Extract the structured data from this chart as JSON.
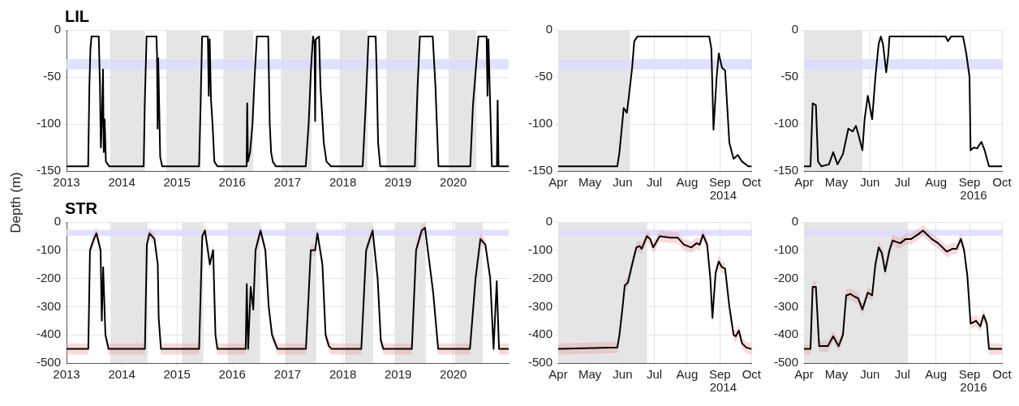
{
  "chart_data": [
    {
      "type": "line",
      "title": "LIL",
      "ylabel": "Depth (m)",
      "xlim": [
        "2013-01-01",
        "2021-01-01"
      ],
      "xticks": [
        {
          "value": "2013-01-01",
          "label": "2013"
        },
        {
          "value": "2014-01-01",
          "label": "2014"
        },
        {
          "value": "2015-01-01",
          "label": "2015"
        },
        {
          "value": "2016-01-01",
          "label": "2016"
        },
        {
          "value": "2017-01-01",
          "label": "2017"
        },
        {
          "value": "2018-01-01",
          "label": "2018"
        },
        {
          "value": "2019-01-01",
          "label": "2019"
        },
        {
          "value": "2020-01-01",
          "label": "2020"
        }
      ],
      "ylim": [
        -150,
        0
      ],
      "yticks": [
        -150,
        -100,
        -50,
        0
      ],
      "grid": true,
      "legend": false,
      "marker": "none",
      "line_style": "solid",
      "bands": [
        {
          "axis": "x",
          "from": "2013-10-16",
          "to": "2014-06-04",
          "color": "#e5e5e5"
        },
        {
          "axis": "x",
          "from": "2014-10-23",
          "to": "2015-06-07",
          "color": "#e5e5e5"
        },
        {
          "axis": "x",
          "from": "2015-11-03",
          "to": "2016-05-19",
          "color": "#e5e5e5"
        },
        {
          "axis": "x",
          "from": "2016-11-18",
          "to": "2017-06-07",
          "color": "#e5e5e5"
        },
        {
          "axis": "x",
          "from": "2017-12-10",
          "to": "2018-06-13",
          "color": "#e5e5e5"
        },
        {
          "axis": "x",
          "from": "2018-10-16",
          "to": "2019-05-19",
          "color": "#e5e5e5"
        },
        {
          "axis": "x",
          "from": "2019-12-01",
          "to": "2020-06-02",
          "color": "#e5e5e5"
        },
        {
          "axis": "y",
          "from": -42,
          "to": -31,
          "color": "#dcdcff"
        }
      ],
      "x": [
        "2013-01-01",
        "2013-05-24",
        "2013-06-01",
        "2013-06-08",
        "2013-06-15",
        "2013-08-02",
        "2013-08-10",
        "2013-08-16",
        "2013-08-22",
        "2013-08-30",
        "2013-09-04",
        "2013-09-10",
        "2013-09-18",
        "2013-10-10",
        "2014-05-26",
        "2014-06-02",
        "2014-06-14",
        "2014-08-18",
        "2014-08-22",
        "2014-08-26",
        "2014-08-30",
        "2014-09-12",
        "2014-09-25",
        "2015-05-27",
        "2015-06-06",
        "2015-06-16",
        "2015-07-24",
        "2015-07-30",
        "2015-08-05",
        "2015-08-14",
        "2015-08-24",
        "2015-09-05",
        "2015-09-25",
        "2016-04-05",
        "2016-04-09",
        "2016-04-14",
        "2016-04-28",
        "2016-05-14",
        "2016-05-28",
        "2016-06-12",
        "2016-08-26",
        "2016-09-05",
        "2016-09-14",
        "2016-09-25",
        "2016-10-15",
        "2017-05-01",
        "2017-05-20",
        "2017-06-05",
        "2017-06-18",
        "2017-06-28",
        "2017-07-02",
        "2017-07-06",
        "2017-07-28",
        "2017-08-06",
        "2017-08-28",
        "2017-09-15",
        "2017-10-15",
        "2018-05-12",
        "2018-06-01",
        "2018-06-20",
        "2018-08-06",
        "2018-08-12",
        "2018-08-22",
        "2018-09-05",
        "2019-04-22",
        "2019-05-10",
        "2019-05-25",
        "2019-08-18",
        "2019-09-05",
        "2019-09-25",
        "2020-04-22",
        "2020-05-10",
        "2020-06-15",
        "2020-08-08",
        "2020-08-14",
        "2020-08-20",
        "2020-09-12",
        "2020-10-15",
        "2020-10-20",
        "2020-10-26",
        "2021-01-01"
      ],
      "series": [
        {
          "color": "#000000",
          "values": [
            -145,
            -145,
            -60,
            -20,
            -7,
            -7,
            -60,
            -125,
            -100,
            -42,
            -130,
            -95,
            -140,
            -145,
            -145,
            -80,
            -7,
            -7,
            -25,
            -105,
            -30,
            -135,
            -145,
            -145,
            -80,
            -7,
            -7,
            -70,
            -10,
            -75,
            -100,
            -140,
            -145,
            -145,
            -78,
            -140,
            -130,
            -100,
            -50,
            -7,
            -7,
            -100,
            -130,
            -140,
            -145,
            -145,
            -100,
            -40,
            -7,
            -15,
            -97,
            -10,
            -7,
            -60,
            -120,
            -140,
            -145,
            -145,
            -80,
            -7,
            -7,
            -40,
            -120,
            -145,
            -145,
            -60,
            -7,
            -7,
            -60,
            -145,
            -145,
            -80,
            -7,
            -7,
            -70,
            -10,
            -145,
            -145,
            -75,
            -145,
            -145
          ]
        }
      ]
    },
    {
      "type": "line",
      "annotations": [
        "2014"
      ],
      "xlim": [
        "2014-04-01",
        "2014-10-01"
      ],
      "xticks": [
        {
          "value": "2014-04-01",
          "label": "Apr"
        },
        {
          "value": "2014-05-01",
          "label": "May"
        },
        {
          "value": "2014-06-01",
          "label": "Jun"
        },
        {
          "value": "2014-07-01",
          "label": "Jul"
        },
        {
          "value": "2014-08-01",
          "label": "Aug"
        },
        {
          "value": "2014-09-01",
          "label": "Sep"
        },
        {
          "value": "2014-10-01",
          "label": "Oct"
        }
      ],
      "ylim": [
        -150,
        0
      ],
      "yticks": [
        -150,
        -100,
        -50,
        0
      ],
      "grid": true,
      "legend": false,
      "marker": "none",
      "line_style": "solid",
      "bands": [
        {
          "axis": "x",
          "from": "2014-04-01",
          "to": "2014-06-08",
          "color": "#e5e5e5"
        },
        {
          "axis": "y",
          "from": -42,
          "to": -31,
          "color": "#dcdcff"
        }
      ],
      "x": [
        "2014-04-01",
        "2014-05-27",
        "2014-05-29",
        "2014-06-02",
        "2014-06-05",
        "2014-06-07",
        "2014-06-10",
        "2014-06-12",
        "2014-06-15",
        "2014-08-22",
        "2014-08-24",
        "2014-08-26",
        "2014-08-29",
        "2014-08-31",
        "2014-09-03",
        "2014-09-06",
        "2014-09-10",
        "2014-09-14",
        "2014-09-18",
        "2014-09-22",
        "2014-09-28",
        "2014-10-01"
      ],
      "series": [
        {
          "color": "#000000",
          "values": [
            -145,
            -145,
            -130,
            -83,
            -88,
            -70,
            -40,
            -12,
            -7,
            -7,
            -20,
            -106,
            -50,
            -25,
            -40,
            -43,
            -120,
            -137,
            -133,
            -140,
            -145,
            -145
          ]
        }
      ]
    },
    {
      "type": "line",
      "annotations": [
        "2016"
      ],
      "xlim": [
        "2016-04-01",
        "2016-10-01"
      ],
      "xticks": [
        {
          "value": "2016-04-01",
          "label": "Apr"
        },
        {
          "value": "2016-05-01",
          "label": "May"
        },
        {
          "value": "2016-06-01",
          "label": "Jun"
        },
        {
          "value": "2016-07-01",
          "label": "Jul"
        },
        {
          "value": "2016-08-01",
          "label": "Aug"
        },
        {
          "value": "2016-09-01",
          "label": "Sep"
        },
        {
          "value": "2016-10-01",
          "label": "Oct"
        }
      ],
      "ylim": [
        -150,
        0
      ],
      "yticks": [
        -150,
        -100,
        -50,
        0
      ],
      "grid": true,
      "legend": false,
      "marker": "none",
      "line_style": "solid",
      "bands": [
        {
          "axis": "x",
          "from": "2016-04-01",
          "to": "2016-05-25",
          "color": "#e5e5e5"
        },
        {
          "axis": "y",
          "from": -42,
          "to": -31,
          "color": "#dcdcff"
        }
      ],
      "x": [
        "2016-04-01",
        "2016-04-07",
        "2016-04-09",
        "2016-04-12",
        "2016-04-14",
        "2016-04-17",
        "2016-04-24",
        "2016-04-28",
        "2016-05-02",
        "2016-05-07",
        "2016-05-12",
        "2016-05-16",
        "2016-05-19",
        "2016-05-21",
        "2016-05-25",
        "2016-05-27",
        "2016-05-30",
        "2016-06-03",
        "2016-06-06",
        "2016-06-09",
        "2016-06-11",
        "2016-06-13",
        "2016-06-16",
        "2016-06-18",
        "2016-06-19",
        "2016-08-10",
        "2016-08-12",
        "2016-08-15",
        "2016-08-26",
        "2016-08-29",
        "2016-09-01",
        "2016-09-02",
        "2016-09-05",
        "2016-09-08",
        "2016-09-12",
        "2016-09-15",
        "2016-09-19",
        "2016-10-01"
      ],
      "series": [
        {
          "color": "#000000",
          "values": [
            -145,
            -145,
            -78,
            -80,
            -140,
            -145,
            -143,
            -130,
            -143,
            -132,
            -105,
            -108,
            -102,
            -110,
            -128,
            -95,
            -70,
            -95,
            -50,
            -15,
            -7,
            -15,
            -45,
            -25,
            -7,
            -7,
            -12,
            -7,
            -7,
            -25,
            -50,
            -128,
            -125,
            -126,
            -119,
            -128,
            -145,
            -145
          ]
        }
      ]
    },
    {
      "type": "line",
      "title": "STR",
      "xlim": [
        "2013-01-01",
        "2021-01-01"
      ],
      "xticks": [
        {
          "value": "2013-01-01",
          "label": "2013"
        },
        {
          "value": "2014-01-01",
          "label": "2014"
        },
        {
          "value": "2015-01-01",
          "label": "2015"
        },
        {
          "value": "2016-01-01",
          "label": "2016"
        },
        {
          "value": "2017-01-01",
          "label": "2017"
        },
        {
          "value": "2018-01-01",
          "label": "2018"
        },
        {
          "value": "2019-01-01",
          "label": "2019"
        },
        {
          "value": "2020-01-01",
          "label": "2020"
        }
      ],
      "ylim": [
        -500,
        0
      ],
      "yticks": [
        -500,
        -400,
        -300,
        -200,
        -100,
        0
      ],
      "grid": true,
      "legend": false,
      "marker": "none",
      "line_style": "solid",
      "bands": [
        {
          "axis": "x",
          "from": "2013-10-19",
          "to": "2014-06-22",
          "color": "#e5e5e5"
        },
        {
          "axis": "x",
          "from": "2015-02-03",
          "to": "2015-06-24",
          "color": "#e5e5e5"
        },
        {
          "axis": "x",
          "from": "2015-12-02",
          "to": "2016-07-04",
          "color": "#e5e5e5"
        },
        {
          "axis": "x",
          "from": "2016-12-16",
          "to": "2017-07-10",
          "color": "#e5e5e5"
        },
        {
          "axis": "x",
          "from": "2018-01-15",
          "to": "2018-07-20",
          "color": "#e5e5e5"
        },
        {
          "axis": "x",
          "from": "2018-12-10",
          "to": "2019-07-02",
          "color": "#e5e5e5"
        },
        {
          "axis": "x",
          "from": "2020-01-13",
          "to": "2020-07-12",
          "color": "#e5e5e5"
        },
        {
          "axis": "y",
          "from": -49,
          "to": -27,
          "color": "#dcdcff"
        }
      ],
      "x": [
        "2013-01-01",
        "2013-05-25",
        "2013-06-05",
        "2013-07-01",
        "2013-07-18",
        "2013-08-14",
        "2013-08-22",
        "2013-08-31",
        "2013-09-15",
        "2013-10-06",
        "2014-06-03",
        "2014-06-16",
        "2014-07-03",
        "2014-08-05",
        "2014-08-27",
        "2014-09-02",
        "2014-09-17",
        "2015-05-27",
        "2015-06-17",
        "2015-07-05",
        "2015-08-06",
        "2015-08-28",
        "2015-09-12",
        "2015-09-25",
        "2016-03-30",
        "2016-04-06",
        "2016-04-15",
        "2016-05-02",
        "2016-05-19",
        "2016-06-03",
        "2016-07-06",
        "2016-08-07",
        "2016-08-29",
        "2016-09-20",
        "2016-10-11",
        "2016-10-26",
        "2017-05-02",
        "2017-05-19",
        "2017-06-03",
        "2017-07-02",
        "2017-07-17",
        "2017-08-19",
        "2017-09-09",
        "2017-10-01",
        "2017-10-20",
        "2018-05-03",
        "2018-06-04",
        "2018-07-17",
        "2018-08-19",
        "2018-09-09",
        "2018-09-26",
        "2019-04-02",
        "2019-04-30",
        "2019-06-06",
        "2019-06-28",
        "2019-08-21",
        "2019-09-23",
        "2020-04-20",
        "2020-05-27",
        "2020-06-28",
        "2020-07-31",
        "2020-09-01",
        "2020-09-23",
        "2020-10-14",
        "2020-10-29",
        "2021-01-01"
      ],
      "series": [
        {
          "color": "#000000",
          "values": [
            -450,
            -450,
            -100,
            -60,
            -40,
            -100,
            -350,
            -160,
            -400,
            -450,
            -450,
            -80,
            -40,
            -60,
            -150,
            -340,
            -450,
            -450,
            -50,
            -30,
            -150,
            -100,
            -400,
            -450,
            -450,
            -220,
            -450,
            -230,
            -310,
            -100,
            -30,
            -100,
            -300,
            -400,
            -430,
            -450,
            -450,
            -270,
            -100,
            -100,
            -40,
            -150,
            -400,
            -440,
            -450,
            -450,
            -100,
            -30,
            -200,
            -420,
            -450,
            -450,
            -100,
            -30,
            -20,
            -250,
            -450,
            -450,
            -200,
            -60,
            -80,
            -200,
            -450,
            -210,
            -450,
            -450
          ],
          "lower": [
            -470,
            -470,
            -120,
            -80,
            -60,
            -120,
            -370,
            -180,
            -420,
            -470,
            -470,
            -100,
            -60,
            -80,
            -170,
            -360,
            -470,
            -470,
            -70,
            -50,
            -170,
            -120,
            -420,
            -470,
            -470,
            -240,
            -470,
            -250,
            -330,
            -120,
            -50,
            -120,
            -320,
            -420,
            -450,
            -470,
            -470,
            -290,
            -120,
            -120,
            -60,
            -170,
            -420,
            -460,
            -470,
            -470,
            -120,
            -50,
            -220,
            -440,
            -470,
            -470,
            -120,
            -50,
            -40,
            -270,
            -470,
            -470,
            -220,
            -80,
            -100,
            -220,
            -470,
            -230,
            -470,
            -470
          ],
          "upper": [
            -430,
            -430,
            -80,
            -40,
            -20,
            -80,
            -330,
            -140,
            -380,
            -430,
            -430,
            -60,
            -20,
            -40,
            -130,
            -320,
            -430,
            -430,
            -30,
            -10,
            -130,
            -80,
            -380,
            -430,
            -430,
            -200,
            -430,
            -210,
            -290,
            -80,
            -10,
            -80,
            -280,
            -380,
            -410,
            -430,
            -430,
            -250,
            -80,
            -80,
            -20,
            -130,
            -380,
            -420,
            -430,
            -430,
            -80,
            -10,
            -180,
            -400,
            -430,
            -430,
            -80,
            -10,
            0,
            -230,
            -430,
            -430,
            -180,
            -40,
            -60,
            -180,
            -430,
            -190,
            -430,
            -430
          ]
        }
      ]
    },
    {
      "type": "line",
      "annotations": [
        "2014"
      ],
      "xlim": [
        "2014-04-01",
        "2014-10-01"
      ],
      "xticks": [
        {
          "value": "2014-04-01",
          "label": "Apr"
        },
        {
          "value": "2014-05-01",
          "label": "May"
        },
        {
          "value": "2014-06-01",
          "label": "Jun"
        },
        {
          "value": "2014-07-01",
          "label": "Jul"
        },
        {
          "value": "2014-08-01",
          "label": "Aug"
        },
        {
          "value": "2014-09-01",
          "label": "Sep"
        },
        {
          "value": "2014-10-01",
          "label": "Oct"
        }
      ],
      "ylim": [
        -500,
        0
      ],
      "yticks": [
        -500,
        -400,
        -300,
        -200,
        -100,
        0
      ],
      "grid": true,
      "legend": false,
      "marker": "none",
      "line_style": "solid",
      "bands": [
        {
          "axis": "x",
          "from": "2014-04-01",
          "to": "2014-06-24",
          "color": "#e5e5e5"
        },
        {
          "axis": "y",
          "from": -49,
          "to": -27,
          "color": "#dcdcff"
        }
      ],
      "x": [
        "2014-04-01",
        "2014-05-27",
        "2014-05-29",
        "2014-06-01",
        "2014-06-03",
        "2014-06-06",
        "2014-06-10",
        "2014-06-14",
        "2014-06-17",
        "2014-06-19",
        "2014-06-24",
        "2014-06-27",
        "2014-06-30",
        "2014-07-06",
        "2014-07-16",
        "2014-07-23",
        "2014-07-29",
        "2014-08-05",
        "2014-08-10",
        "2014-08-13",
        "2014-08-16",
        "2014-08-20",
        "2014-08-23",
        "2014-08-25",
        "2014-08-28",
        "2014-08-31",
        "2014-09-03",
        "2014-09-06",
        "2014-09-10",
        "2014-09-14",
        "2014-09-16",
        "2014-09-19",
        "2014-09-22",
        "2014-09-26",
        "2014-10-01"
      ],
      "series": [
        {
          "color": "#000000",
          "values": [
            -450,
            -445,
            -400,
            -300,
            -225,
            -215,
            -150,
            -90,
            -85,
            -95,
            -50,
            -60,
            -90,
            -50,
            -55,
            -55,
            -80,
            -90,
            -75,
            -80,
            -45,
            -80,
            -200,
            -340,
            -180,
            -140,
            -160,
            -165,
            -300,
            -400,
            -405,
            -385,
            -430,
            -445,
            -450
          ],
          "lower": [
            -470,
            -465,
            -420,
            -320,
            -245,
            -235,
            -170,
            -110,
            -105,
            -115,
            -70,
            -80,
            -110,
            -70,
            -75,
            -75,
            -100,
            -110,
            -95,
            -100,
            -65,
            -100,
            -220,
            -360,
            -200,
            -160,
            -180,
            -185,
            -320,
            -420,
            -425,
            -405,
            -450,
            -465,
            -470
          ],
          "upper": [
            -430,
            -425,
            -380,
            -280,
            -205,
            -195,
            -130,
            -70,
            -65,
            -75,
            -30,
            -40,
            -70,
            -30,
            -35,
            -35,
            -60,
            -70,
            -55,
            -60,
            -25,
            -60,
            -180,
            -320,
            -160,
            -120,
            -140,
            -145,
            -280,
            -380,
            -385,
            -365,
            -410,
            -425,
            -430
          ]
        }
      ]
    },
    {
      "type": "line",
      "annotations": [
        "2016"
      ],
      "xlim": [
        "2016-04-01",
        "2016-10-01"
      ],
      "xticks": [
        {
          "value": "2016-04-01",
          "label": "Apr"
        },
        {
          "value": "2016-05-01",
          "label": "May"
        },
        {
          "value": "2016-06-01",
          "label": "Jun"
        },
        {
          "value": "2016-07-01",
          "label": "Jul"
        },
        {
          "value": "2016-08-01",
          "label": "Aug"
        },
        {
          "value": "2016-09-01",
          "label": "Sep"
        },
        {
          "value": "2016-10-01",
          "label": "Oct"
        }
      ],
      "ylim": [
        -500,
        0
      ],
      "yticks": [
        -500,
        -400,
        -300,
        -200,
        -100,
        0
      ],
      "grid": true,
      "legend": false,
      "marker": "none",
      "line_style": "solid",
      "bands": [
        {
          "axis": "x",
          "from": "2016-04-01",
          "to": "2016-07-06",
          "color": "#e5e5e5"
        },
        {
          "axis": "y",
          "from": -49,
          "to": -27,
          "color": "#dcdcff"
        }
      ],
      "x": [
        "2016-04-01",
        "2016-04-07",
        "2016-04-09",
        "2016-04-12",
        "2016-04-15",
        "2016-04-23",
        "2016-04-28",
        "2016-05-03",
        "2016-05-06",
        "2016-05-07",
        "2016-05-10",
        "2016-05-14",
        "2016-05-18",
        "2016-05-21",
        "2016-05-25",
        "2016-05-30",
        "2016-06-03",
        "2016-06-06",
        "2016-06-09",
        "2016-06-12",
        "2016-06-15",
        "2016-06-19",
        "2016-06-22",
        "2016-06-25",
        "2016-06-29",
        "2016-07-04",
        "2016-07-09",
        "2016-07-15",
        "2016-07-20",
        "2016-07-28",
        "2016-08-03",
        "2016-08-11",
        "2016-08-16",
        "2016-08-20",
        "2016-08-24",
        "2016-08-27",
        "2016-08-30",
        "2016-09-02",
        "2016-09-07",
        "2016-09-11",
        "2016-09-14",
        "2016-09-17",
        "2016-09-19",
        "2016-10-01"
      ],
      "series": [
        {
          "color": "#000000",
          "values": [
            -450,
            -450,
            -230,
            -230,
            -440,
            -440,
            -405,
            -440,
            -410,
            -400,
            -260,
            -255,
            -265,
            -270,
            -310,
            -250,
            -260,
            -150,
            -90,
            -110,
            -175,
            -100,
            -65,
            -70,
            -75,
            -60,
            -60,
            -45,
            -30,
            -60,
            -75,
            -105,
            -95,
            -95,
            -60,
            -100,
            -190,
            -360,
            -350,
            -370,
            -330,
            -360,
            -450,
            -450
          ],
          "lower": [
            -470,
            -470,
            -250,
            -250,
            -460,
            -460,
            -425,
            -460,
            -430,
            -420,
            -280,
            -275,
            -285,
            -290,
            -330,
            -270,
            -280,
            -170,
            -110,
            -130,
            -195,
            -120,
            -85,
            -90,
            -95,
            -80,
            -80,
            -65,
            -50,
            -80,
            -95,
            -125,
            -115,
            -115,
            -80,
            -120,
            -210,
            -380,
            -370,
            -390,
            -350,
            -380,
            -470,
            -470
          ],
          "upper": [
            -430,
            -430,
            -210,
            -210,
            -420,
            -420,
            -385,
            -420,
            -390,
            -380,
            -240,
            -235,
            -245,
            -250,
            -290,
            -230,
            -240,
            -130,
            -70,
            -90,
            -155,
            -80,
            -45,
            -50,
            -55,
            -40,
            -40,
            -25,
            -10,
            -40,
            -55,
            -85,
            -75,
            -75,
            -40,
            -80,
            -170,
            -340,
            -330,
            -350,
            -310,
            -340,
            -430,
            -430
          ]
        }
      ]
    }
  ]
}
